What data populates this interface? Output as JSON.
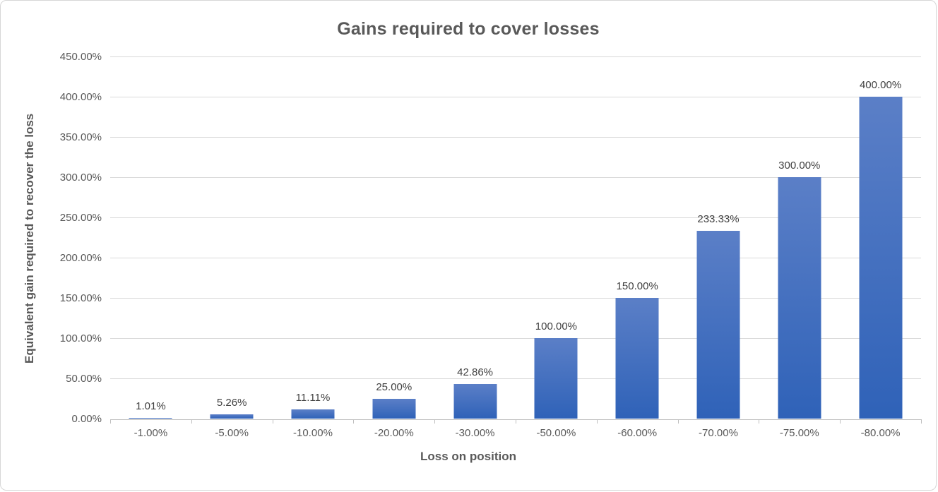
{
  "chart_data": {
    "type": "bar",
    "title": "Gains required to cover losses",
    "xlabel": "Loss on position",
    "ylabel": "Equivalent gain required to recover the loss",
    "categories": [
      "-1.00%",
      "-5.00%",
      "-10.00%",
      "-20.00%",
      "-30.00%",
      "-50.00%",
      "-60.00%",
      "-70.00%",
      "-75.00%",
      "-80.00%"
    ],
    "values": [
      1.01,
      5.26,
      11.11,
      25.0,
      42.86,
      100.0,
      150.0,
      233.33,
      300.0,
      400.0
    ],
    "data_labels": [
      "1.01%",
      "5.26%",
      "11.11%",
      "25.00%",
      "42.86%",
      "100.00%",
      "150.00%",
      "233.33%",
      "300.00%",
      "400.00%"
    ],
    "y_ticks": [
      "0.00%",
      "50.00%",
      "100.00%",
      "150.00%",
      "200.00%",
      "250.00%",
      "300.00%",
      "350.00%",
      "400.00%",
      "450.00%"
    ],
    "y_tick_values": [
      0,
      50,
      100,
      150,
      200,
      250,
      300,
      350,
      400,
      450
    ],
    "ylim": [
      0,
      450
    ],
    "grid": true,
    "legend": false,
    "colors": {
      "bar_top": "#5b7fc7",
      "bar_bottom": "#2f62b8",
      "gridline": "#d9d9d9",
      "axis_line": "#bfbfbf",
      "title": "#595959",
      "tick_label": "#595959",
      "data_label": "#404040"
    }
  }
}
